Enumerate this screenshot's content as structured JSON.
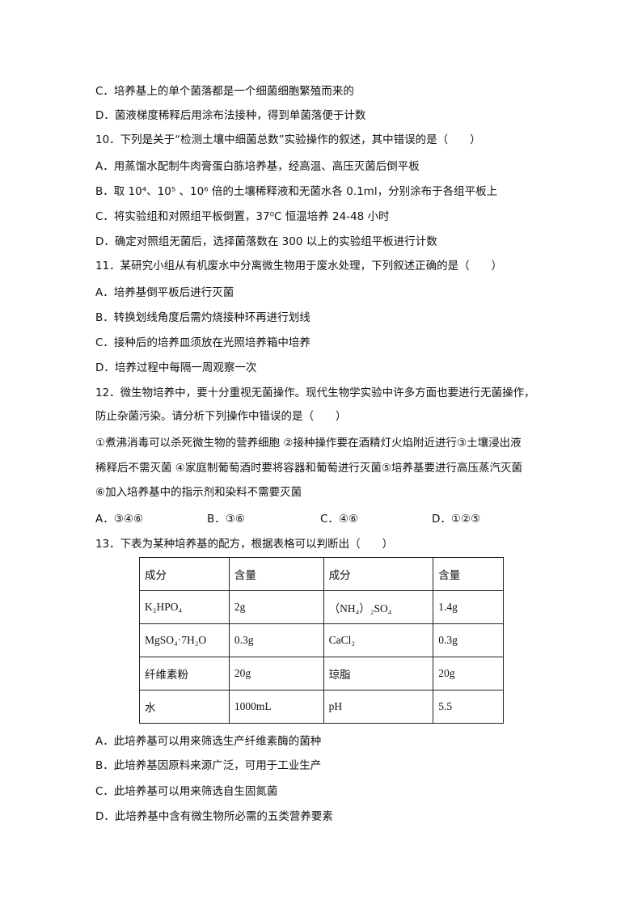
{
  "q9": {
    "C": "C．培养基上的单个菌落都是一个细菌细胞繁殖而来的",
    "D": "D．菌液梯度稀释后用涂布法接种，得到单菌落便于计数"
  },
  "q10": {
    "stem": "10．下列是关于“检测土壤中细菌总数”实验操作的叙述，其中错误的是（　　）",
    "A": "A．用蒸馏水配制牛肉膏蛋白胨培养基，经高温、高压灭菌后倒平板",
    "B": "B．取 10⁴、10⁵ 、10⁶ 倍的土壤稀释液和无菌水各 0.1ml，分别涂布于各组平板上",
    "C": "C．将实验组和对照组平板倒置，37⁰C 恒温培养 24-48 小时",
    "D": "D．确定对照组无菌后，选择菌落数在 300 以上的实验组平板进行计数"
  },
  "q11": {
    "stem": "11．某研究小组从有机废水中分离微生物用于废水处理，下列叙述正确的是（　　）",
    "A": "A．培养基倒平板后进行灭菌",
    "B": "B．转换划线角度后需灼烧接种环再进行划线",
    "C": "C．接种后的培养皿须放在光照培养箱中培养",
    "D": "D．培养过程中每隔一周观察一次"
  },
  "q12": {
    "stem1": "12．微生物培养中，要十分重视无菌操作。现代生物学实验中许多方面也要进行无菌操作，",
    "stem2": "防止杂菌污染。请分析下列操作中错误的是（　　）",
    "items1": "①煮沸消毒可以杀死微生物的营养细胞 ②接种操作要在酒精灯火焰附近进行③土壤浸出液",
    "items2": "稀释后不需灭菌 ④家庭制葡萄酒时要将容器和葡萄进行灭菌⑤培养基要进行高压蒸汽灭菌",
    "items3": "⑥加入培养基中的指示剂和染料不需要灭菌",
    "A": "A．③④⑥",
    "B": "B．③⑥",
    "C": "C．④⑥",
    "D": "D．①②⑤"
  },
  "q13": {
    "stem": "13．下表为某种培养基的配方，根据表格可以判断出（　　）",
    "table": [
      [
        "成分",
        "含量",
        "成分",
        "含量"
      ],
      [
        "K₂HPO₄",
        "2g",
        "（NH₄）₂SO₄",
        "1.4g"
      ],
      [
        "MgSO₄·7H₂O",
        "0.3g",
        "CaCl₂",
        "0.3g"
      ],
      [
        "纤维素粉",
        "20g",
        "琼脂",
        "20g"
      ],
      [
        "水",
        "1000mL",
        "pH",
        "5.5"
      ]
    ],
    "A": "A．此培养基可以用来筛选生产纤维素酶的菌种",
    "B": "B．此培养基因原料来源广泛，可用于工业生产",
    "C": "C．此培养基可以用来筛选自生固氮菌",
    "D": "D．此培养基中含有微生物所必需的五类营养要素"
  }
}
